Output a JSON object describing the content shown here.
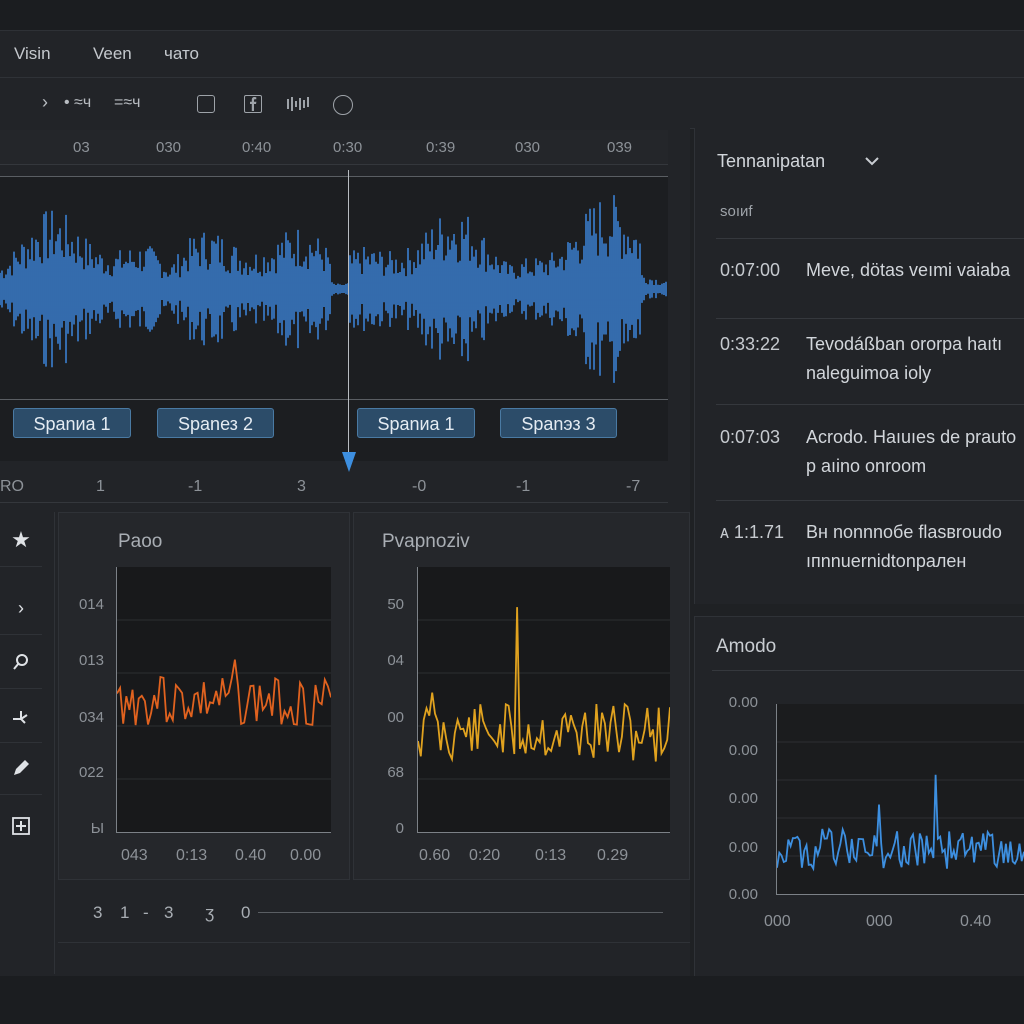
{
  "menu": {
    "items": [
      "Visin",
      "Veen",
      "чато"
    ]
  },
  "toolbar": {
    "chevron": "›",
    "label_1": "• ≈ч",
    "label_2": "=≈ч",
    "icons": [
      "frame-icon",
      "facebook-icon",
      "waveform-icon",
      "record-icon"
    ]
  },
  "timeline": {
    "ruler_labels": [
      "03",
      "030",
      "0:40",
      "0:30",
      "0:39",
      "030",
      "039"
    ],
    "clips": [
      "Spanиa  1",
      "Spanез 2",
      "Spanиa  1",
      "Spanэз 3"
    ],
    "bottom_labels": [
      "RO",
      "1",
      "-1",
      "3",
      "-0",
      "-1",
      "-7"
    ]
  },
  "graph_left": {
    "title": "Paoo",
    "y_labels": [
      "014",
      "013",
      "034",
      "022",
      "Ы"
    ],
    "x_labels": [
      "043",
      "0:13",
      "0.40",
      "0.00"
    ],
    "color": "#e0621f"
  },
  "graph_mid": {
    "title": "Pvapnoziv",
    "y_labels": [
      "50",
      "04",
      "00",
      "68",
      "0"
    ],
    "x_labels": [
      "0.60",
      "0:20",
      "0:13",
      "0.29"
    ],
    "color": "#e0a21f"
  },
  "segment_row": {
    "labels": [
      "3",
      "1",
      "-",
      "3",
      "ʒ",
      "0"
    ]
  },
  "transcript": {
    "title": "Tennanipatan",
    "subtitle": "soıиf",
    "entries": [
      {
        "time": "0:07:00",
        "line1": "Meve, dötas veımi vaiaba",
        "line2": ""
      },
      {
        "time": "0:33:22",
        "line1": "Tevodáßban ororpa haıtı",
        "line2": "naleguimoa ioly"
      },
      {
        "time": "0:07:03",
        "line1": "Acrodo. Haıuıes de prauto",
        "line2": "p aıino onroom"
      },
      {
        "time": "ᴀ 1:1.71",
        "line1": "Bн nonnnoбe flasвroudo",
        "line2": "ıпnnuernidtonpaлeн"
      }
    ]
  },
  "amplitude": {
    "title": "Amodo",
    "y_labels": [
      "0.00",
      "0.00",
      "0.00",
      "0.00",
      "0.00"
    ],
    "x_labels": [
      "000",
      "000",
      "0.40"
    ],
    "color": "#3d8fe0"
  },
  "colors": {
    "wave": "#3a7fd0",
    "accent": "#3d8fe0"
  }
}
